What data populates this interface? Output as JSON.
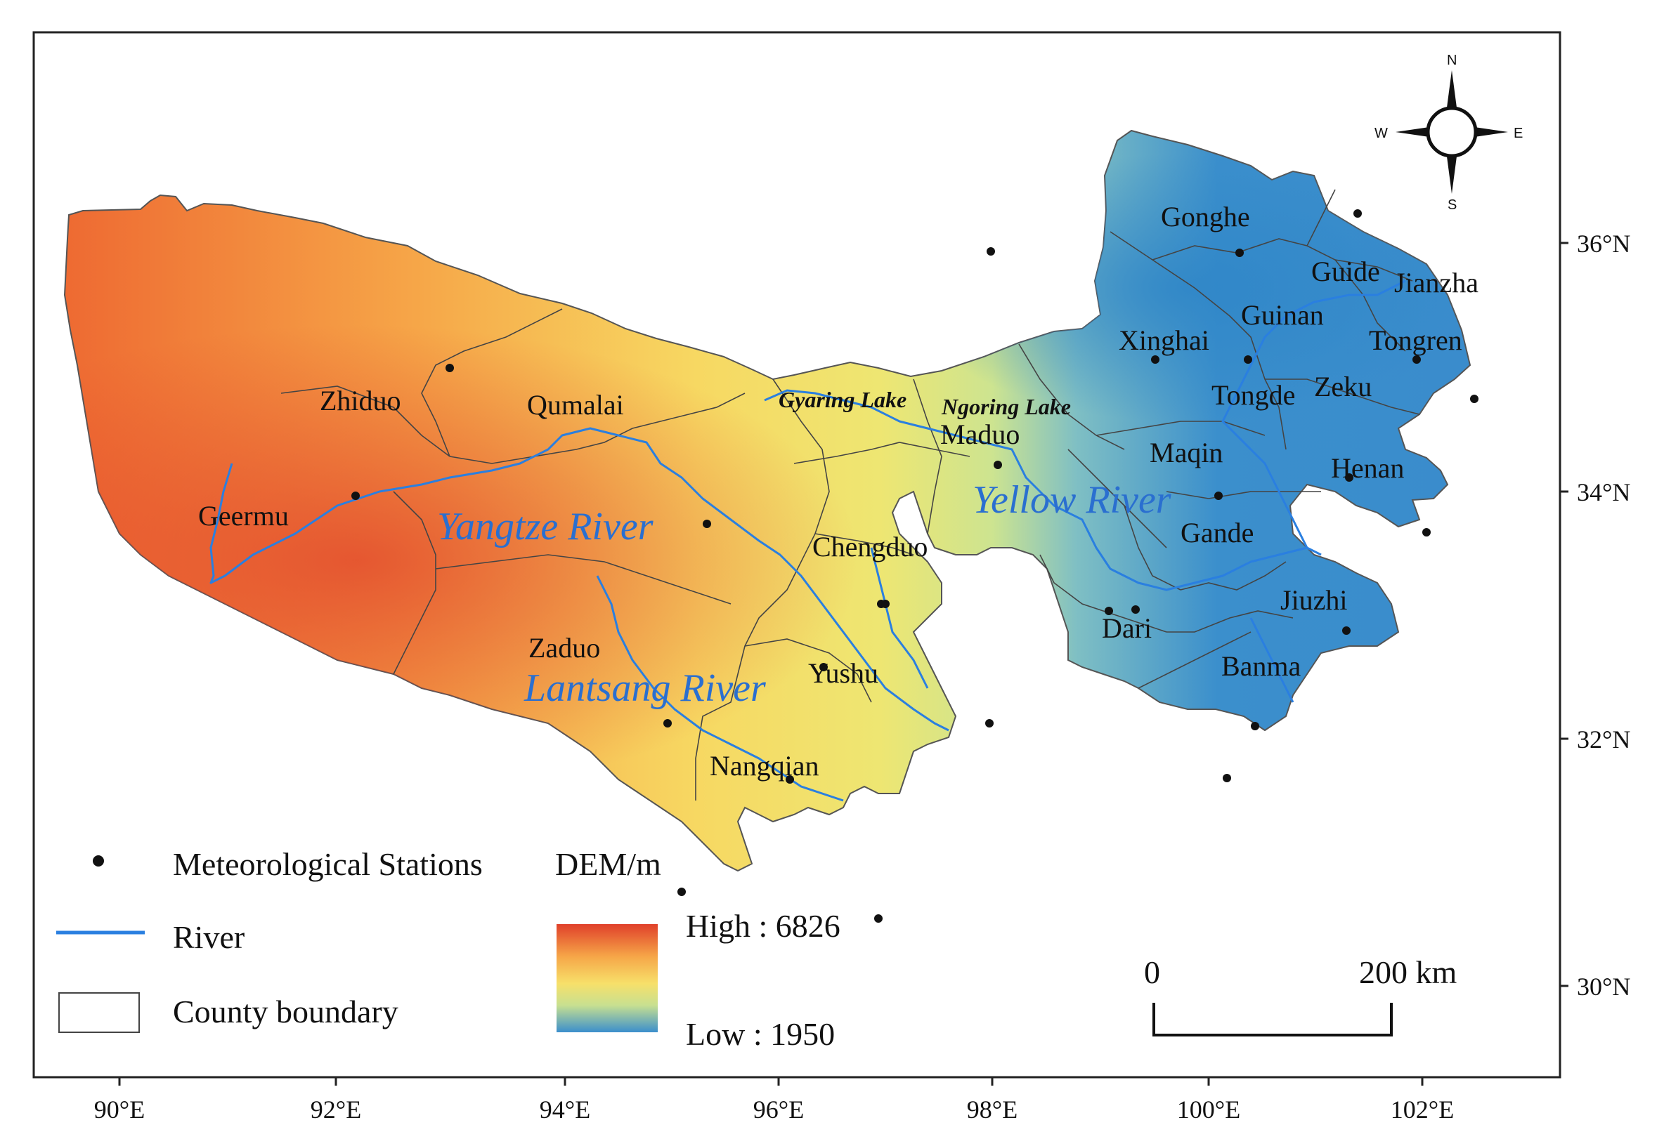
{
  "map": {
    "counties": [
      {
        "id": "zhiduo",
        "name": "Zhiduo"
      },
      {
        "id": "qumalai",
        "name": "Qumalai"
      },
      {
        "id": "geermu",
        "name": "Geermu"
      },
      {
        "id": "zaduo",
        "name": "Zaduo"
      },
      {
        "id": "chengduo",
        "name": "Chengduo"
      },
      {
        "id": "yushu",
        "name": "Yushu"
      },
      {
        "id": "nangqian",
        "name": "Nangqian"
      },
      {
        "id": "maduo",
        "name": "Maduo"
      },
      {
        "id": "gonghe",
        "name": "Gonghe"
      },
      {
        "id": "guide",
        "name": "Guide"
      },
      {
        "id": "jianzha",
        "name": "Jianzha"
      },
      {
        "id": "guinan",
        "name": "Guinan"
      },
      {
        "id": "xinghai",
        "name": "Xinghai"
      },
      {
        "id": "tongren",
        "name": "Tongren"
      },
      {
        "id": "tongde",
        "name": "Tongde"
      },
      {
        "id": "zeku",
        "name": "Zeku"
      },
      {
        "id": "maqin",
        "name": "Maqin"
      },
      {
        "id": "henan",
        "name": "Henan"
      },
      {
        "id": "gande",
        "name": "Gande"
      },
      {
        "id": "jiuzhi",
        "name": "Jiuzhi"
      },
      {
        "id": "dari",
        "name": "Dari"
      },
      {
        "id": "banma",
        "name": "Banma"
      }
    ],
    "lakes": [
      {
        "id": "gyaring",
        "name": "Gyaring Lake"
      },
      {
        "id": "ngoring",
        "name": "Ngoring Lake"
      }
    ],
    "rivers": [
      {
        "id": "yangtze",
        "name": "Yangtze River"
      },
      {
        "id": "yellow",
        "name": "Yellow River"
      },
      {
        "id": "lantsang",
        "name": "Lantsang River"
      }
    ],
    "stations_count": 28,
    "x_ticks": [
      "90°E",
      "92°E",
      "94°E",
      "96°E",
      "98°E",
      "100°E",
      "102°E"
    ],
    "y_ticks": [
      "36°N",
      "34°N",
      "32°N",
      "30°N"
    ],
    "compass": {
      "n": "N",
      "s": "S",
      "e": "E",
      "w": "W"
    }
  },
  "legend": {
    "stations": "Meteorological Stations",
    "river": "River",
    "county": "County boundary",
    "dem_title": "DEM/m",
    "dem_high": "High : 6826",
    "dem_low": "Low : 1950",
    "scale_zero": "0",
    "scale_end": "200 km"
  },
  "colors": {
    "dem_high": "#e0402a",
    "dem_mid_high": "#f5a848",
    "dem_mid": "#f6e06a",
    "dem_mid_low": "#c8e090",
    "dem_low": "#3b8fcc",
    "river": "#2a7fe0",
    "river_label": "#2a6fd0"
  }
}
